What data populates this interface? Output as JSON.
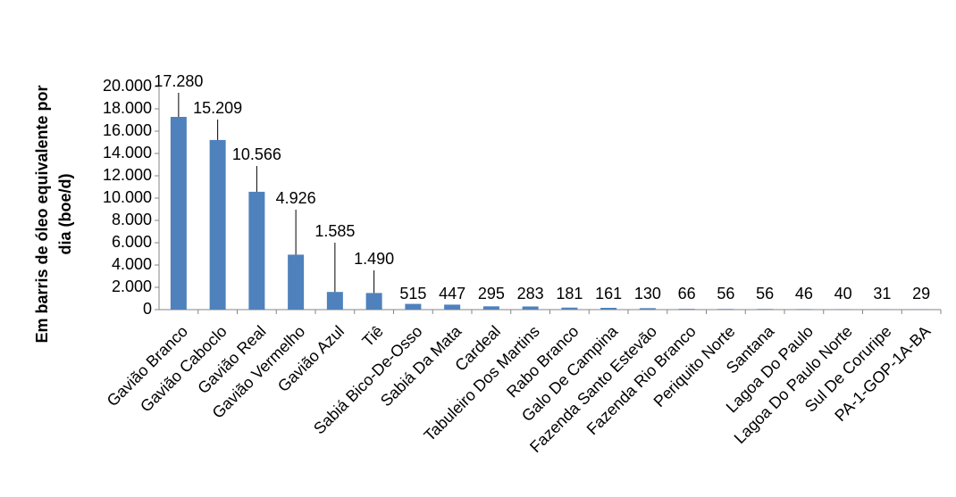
{
  "chart_data": {
    "type": "bar",
    "ylabel": [
      "Em barris de óleo equivalente por",
      "dia (boe/d)"
    ],
    "categories": [
      "Gavião Branco",
      "Gavião Caboclo",
      "Gavião Real",
      "Gavião Vermelho",
      "Gavião Azul",
      "Tiê",
      "Sabiá Bico-De-Osso",
      "Sabiá Da Mata",
      "Cardeal",
      "Tabuleiro Dos Martins",
      "Rabo Branco",
      "Galo De Campina",
      "Fazenda Santo Estevão",
      "Fazenda Rio Branco",
      "Periquito Norte",
      "Santana",
      "Lagoa Do Paulo",
      "Lagoa Do Paulo Norte",
      "Sul De Coruripe",
      "PA-1-GOP-1A-BA"
    ],
    "values": [
      17280,
      15209,
      10566,
      4926,
      1585,
      1490,
      515,
      447,
      295,
      283,
      181,
      161,
      130,
      66,
      56,
      56,
      46,
      40,
      31,
      29
    ],
    "value_labels": [
      "17.280",
      "15.209",
      "10.566",
      "4.926",
      "1.585",
      "1.490",
      "515",
      "447",
      "295",
      "283",
      "181",
      "161",
      "130",
      "66",
      "56",
      "56",
      "46",
      "40",
      "31",
      "29"
    ],
    "color": "#4f81bd",
    "ylim": [
      0,
      20000
    ],
    "yticks": [
      0,
      {
        "value": 2000,
        "label": "2.000"
      },
      {
        "value": 4000,
        "label": "4.000"
      },
      {
        "value": 6000,
        "label": "6.000"
      },
      {
        "value": 8000,
        "label": "8.000"
      },
      {
        "value": 10000,
        "label": "10.000"
      },
      {
        "value": 12000,
        "label": "12.000"
      },
      {
        "value": 14000,
        "label": "14.000"
      },
      {
        "value": 16000,
        "label": "16.000"
      },
      {
        "value": 18000,
        "label": "18.000"
      },
      {
        "value": 20000,
        "label": "20.000"
      }
    ],
    "grid": false
  }
}
